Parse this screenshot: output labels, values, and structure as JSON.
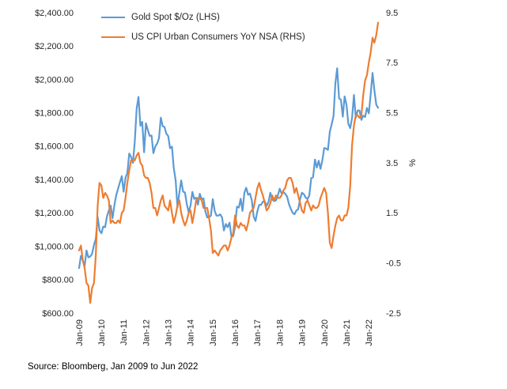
{
  "source_note": "Source: Bloomberg, Jan 2009 to Jun 2022",
  "chart_data": {
    "type": "line",
    "title": "",
    "x_range": [
      "2009-01",
      "2022-06"
    ],
    "x_interval": "month",
    "x_tick_labels": [
      "Jan-09",
      "Jan-10",
      "Jan-11",
      "Jan-12",
      "Jan-13",
      "Jan-14",
      "Jan-15",
      "Jan-16",
      "Jan-17",
      "Jan-18",
      "Jan-19",
      "Jan-20",
      "Jan-21",
      "Jan-22"
    ],
    "grid": false,
    "legend_position": "top-left-inside",
    "left_axis": {
      "min": 600,
      "max": 2400,
      "tick_step": 200,
      "tick_labels": [
        "$2,400.00",
        "$2,200.00",
        "$2,000.00",
        "$1,800.00",
        "$1,600.00",
        "$1,400.00",
        "$1,200.00",
        "$1,000.00",
        "$800.00",
        "$600.00"
      ]
    },
    "right_axis": {
      "min": -2.5,
      "max": 9.5,
      "tick_step": 2.0,
      "tick_labels": [
        "9.5",
        "7.5",
        "5.5",
        "3.5",
        "1.5",
        "-0.5",
        "-2.5"
      ],
      "label": "%"
    },
    "series": [
      {
        "name": "Gold Spot $/Oz (LHS)",
        "axis": "left",
        "color": "#5B9BD5",
        "values": [
          870,
          943,
          916,
          883,
          975,
          934,
          939,
          955,
          1008,
          1045,
          1175,
          1096,
          1078,
          1118,
          1115,
          1179,
          1215,
          1244,
          1169,
          1246,
          1307,
          1346,
          1385,
          1421,
          1327,
          1411,
          1439,
          1556,
          1536,
          1500,
          1628,
          1826,
          1895,
          1722,
          1746,
          1564,
          1737,
          1696,
          1662,
          1664,
          1558,
          1598,
          1615,
          1648,
          1771,
          1720,
          1715,
          1675,
          1660,
          1588,
          1597,
          1469,
          1394,
          1234,
          1323,
          1395,
          1327,
          1323,
          1253,
          1205,
          1244,
          1326,
          1284,
          1291,
          1250,
          1315,
          1282,
          1287,
          1208,
          1173,
          1175,
          1184,
          1283,
          1213,
          1184,
          1184,
          1191,
          1172,
          1095,
          1134,
          1115,
          1142,
          1061,
          1061,
          1118,
          1238,
          1232,
          1285,
          1212,
          1322,
          1351,
          1309,
          1316,
          1277,
          1178,
          1152,
          1210,
          1248,
          1249,
          1268,
          1269,
          1242,
          1267,
          1321,
          1280,
          1271,
          1275,
          1303,
          1345,
          1318,
          1325,
          1315,
          1298,
          1253,
          1224,
          1201,
          1192,
          1215,
          1222,
          1282,
          1321,
          1313,
          1292,
          1283,
          1306,
          1409,
          1414,
          1520,
          1472,
          1513,
          1464,
          1517,
          1589,
          1586,
          1577,
          1687,
          1730,
          1781,
          1976,
          2067,
          1886,
          1879,
          1777,
          1898,
          1848,
          1734,
          1708,
          1769,
          1907,
          1770,
          1814,
          1814,
          1757,
          1783,
          1775,
          1829,
          1797,
          1909,
          2039,
          1937,
          1849,
          1830
        ]
      },
      {
        "name": "US CPI Urban Consumers YoY NSA (RHS)",
        "axis": "right",
        "color": "#ED7D31",
        "values": [
          0.0,
          0.2,
          -0.4,
          -0.7,
          -1.3,
          -1.4,
          -2.1,
          -1.5,
          -1.3,
          -0.2,
          1.8,
          2.7,
          2.6,
          2.1,
          2.3,
          2.2,
          2.0,
          1.1,
          1.2,
          1.1,
          1.1,
          1.2,
          1.1,
          1.5,
          1.6,
          2.1,
          2.7,
          3.2,
          3.6,
          3.6,
          3.6,
          3.8,
          3.9,
          3.5,
          3.4,
          3.0,
          2.9,
          2.9,
          2.7,
          2.3,
          1.7,
          1.7,
          1.4,
          1.7,
          2.0,
          2.2,
          1.8,
          1.7,
          1.6,
          2.0,
          1.5,
          1.1,
          1.4,
          1.8,
          2.0,
          1.5,
          1.2,
          1.0,
          1.2,
          1.5,
          1.6,
          1.1,
          1.5,
          2.0,
          2.1,
          2.1,
          2.0,
          1.7,
          1.7,
          1.7,
          1.3,
          0.8,
          -0.1,
          0.0,
          -0.1,
          -0.2,
          0.0,
          0.1,
          0.2,
          0.2,
          0.0,
          0.2,
          0.5,
          0.7,
          1.4,
          1.0,
          0.9,
          1.1,
          1.0,
          1.0,
          0.8,
          1.1,
          1.5,
          1.6,
          1.7,
          2.1,
          2.5,
          2.7,
          2.4,
          2.2,
          1.9,
          1.6,
          1.7,
          1.9,
          2.2,
          2.0,
          2.2,
          2.1,
          2.1,
          2.2,
          2.4,
          2.5,
          2.8,
          2.9,
          2.9,
          2.7,
          2.3,
          2.5,
          2.2,
          1.9,
          1.6,
          1.5,
          1.9,
          2.0,
          1.8,
          1.6,
          1.8,
          1.7,
          1.7,
          1.8,
          2.1,
          2.3,
          2.5,
          2.3,
          1.5,
          0.3,
          0.1,
          0.6,
          1.0,
          1.3,
          1.4,
          1.2,
          1.2,
          1.4,
          1.4,
          1.7,
          2.6,
          4.2,
          5.0,
          5.4,
          5.4,
          5.3,
          5.4,
          6.2,
          6.8,
          7.0,
          7.5,
          7.9,
          8.5,
          8.3,
          8.6,
          9.1
        ]
      }
    ]
  }
}
